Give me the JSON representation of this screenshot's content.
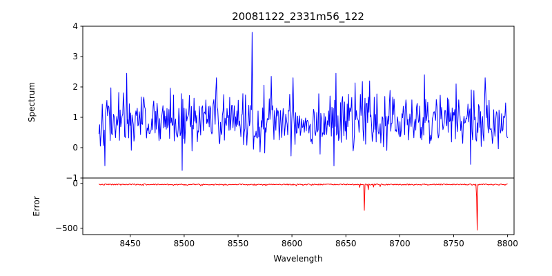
{
  "chart_data": {
    "type": "line",
    "title": "20081122_2331m56_122",
    "xlabel": "Wavelength",
    "xlim": [
      8406,
      8806
    ],
    "x_ticks": [
      8450,
      8500,
      8550,
      8600,
      8650,
      8700,
      8750,
      8800
    ],
    "grid": false,
    "legend": "none",
    "subplots": [
      {
        "name": "spectrum",
        "ylabel": "Spectrum",
        "ylim": [
          -1,
          4
        ],
        "y_ticks": [
          -1,
          0,
          1,
          2,
          3,
          4
        ],
        "color": "#0000ff",
        "description": "dense noisy spectrum, mean ~0.9, typical range 0 to 2, single tall spike to 3.8 near 8563, occasional dips to -0.7",
        "noise": {
          "seed": 42,
          "n": 620,
          "x_start": 8421,
          "x_end": 8800,
          "mean": 0.88,
          "std": 0.45,
          "clamp": [
            -0.8,
            2.5
          ]
        },
        "features": [
          {
            "x": 8447,
            "y": 2.45
          },
          {
            "x": 8498,
            "y": -0.75
          },
          {
            "x": 8530,
            "y": 2.3
          },
          {
            "x": 8563,
            "y": 3.8
          },
          {
            "x": 8581,
            "y": 2.35
          },
          {
            "x": 8601,
            "y": 2.3
          },
          {
            "x": 8639,
            "y": -0.6
          },
          {
            "x": 8641,
            "y": 2.45
          },
          {
            "x": 8672,
            "y": 2.2
          },
          {
            "x": 8723,
            "y": 2.4
          },
          {
            "x": 8752,
            "y": 2.1
          },
          {
            "x": 8766,
            "y": -0.55
          },
          {
            "x": 8779,
            "y": 2.3
          }
        ]
      },
      {
        "name": "error",
        "ylabel": "Error",
        "ylim": [
          -570,
          60
        ],
        "y_ticks": [
          0,
          -500
        ],
        "color": "#ff0000",
        "description": "error curve hugging slightly below zero with small wiggles, a deep narrow dip to ~-300 near 8667 and a very deep narrow dip to ~-520 near 8772",
        "noise": {
          "seed": 7,
          "n": 620,
          "x_start": 8421,
          "x_end": 8800,
          "mean": -12,
          "std": 4,
          "clamp": [
            -28,
            -5
          ]
        },
        "features": [
          {
            "x": 8462,
            "y": -24
          },
          {
            "x": 8490,
            "y": -22
          },
          {
            "x": 8515,
            "y": -26
          },
          {
            "x": 8604,
            "y": -27
          },
          {
            "x": 8610,
            "y": -23
          },
          {
            "x": 8663,
            "y": -45
          },
          {
            "x": 8667,
            "y": -300
          },
          {
            "x": 8671,
            "y": -70
          },
          {
            "x": 8676,
            "y": -40
          },
          {
            "x": 8682,
            "y": -35
          },
          {
            "x": 8771,
            "y": -150
          },
          {
            "x": 8772,
            "y": -520
          }
        ]
      }
    ]
  }
}
